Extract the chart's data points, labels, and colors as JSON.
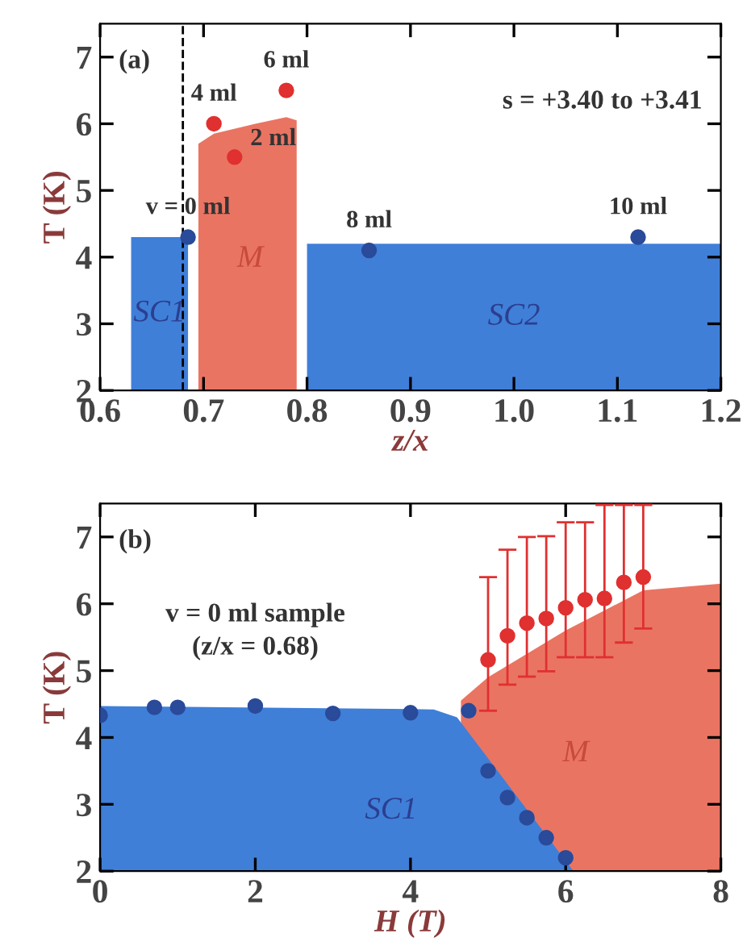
{
  "chart_data": [
    {
      "type": "scatter",
      "xlabel": "z/x",
      "ylabel": "T (K)",
      "xlim": [
        0.6,
        1.2
      ],
      "ylim": [
        2,
        7.5
      ],
      "xticks": [
        0.6,
        0.7,
        0.8,
        0.9,
        {
          "value": 1.0,
          "label": "1.0"
        },
        1.1,
        1.2
      ],
      "yticks": [
        2,
        3,
        4,
        5,
        6,
        7
      ],
      "series": [
        {
          "name": "SC1",
          "type": "area",
          "color": "#3f7fd8",
          "x": [
            0.63,
            0.685
          ],
          "values": [
            4.3,
            4.3
          ]
        },
        {
          "name": "M",
          "type": "area",
          "color": "#ea7462",
          "x": [
            0.695,
            0.71,
            0.75,
            0.78,
            0.79
          ],
          "values": [
            5.7,
            5.85,
            6.0,
            6.1,
            6.05
          ]
        },
        {
          "name": "SC2",
          "type": "area",
          "color": "#3f7fd8",
          "x": [
            0.8,
            1.2
          ],
          "values": [
            4.2,
            4.2
          ]
        },
        {
          "color": "#2a4a9a",
          "marker": "circle",
          "x": [
            0.685,
            0.86,
            1.12
          ],
          "values": [
            4.3,
            4.1,
            4.3
          ]
        },
        {
          "color": "#e03030",
          "marker": "circle",
          "x": [
            0.71,
            0.73,
            0.78
          ],
          "values": [
            6.0,
            5.5,
            6.5
          ]
        }
      ],
      "ref_lines": [
        {
          "axis": "x",
          "value": 0.68,
          "line_style": "dashed",
          "color": "#000000"
        }
      ],
      "annotations": [
        "(a)",
        "s = +3.40 to +3.41",
        {
          "text": "v = 0 ml",
          "x": 0.685,
          "y": 4.3
        },
        {
          "text": "2 ml",
          "x": 0.73,
          "y": 5.5
        },
        {
          "text": "4 ml",
          "x": 0.71,
          "y": 6.0
        },
        {
          "text": "6 ml",
          "x": 0.78,
          "y": 6.5
        },
        {
          "text": "8 ml",
          "x": 0.86,
          "y": 4.1
        },
        {
          "text": "10 ml",
          "x": 1.12,
          "y": 4.3
        }
      ]
    },
    {
      "type": "scatter",
      "xlabel": "H (T)",
      "ylabel": "T (K)",
      "xlim": [
        0,
        8
      ],
      "ylim": [
        2,
        7.5
      ],
      "xticks": [
        0,
        2,
        4,
        6,
        8
      ],
      "yticks": [
        2,
        3,
        4,
        5,
        6,
        7
      ],
      "series": [
        {
          "name": "M",
          "type": "area",
          "color": "#ea7462",
          "x": [
            4.65,
            5,
            6,
            7,
            8
          ],
          "values": [
            4.55,
            4.9,
            5.6,
            6.2,
            6.3
          ]
        },
        {
          "name": "SC1",
          "type": "area",
          "color": "#3f7fd8",
          "x": [
            0,
            4.3,
            4.6,
            6.1
          ],
          "values": [
            4.47,
            4.42,
            4.3,
            2
          ]
        },
        {
          "color": "#2a4a9a",
          "marker": "circle",
          "x": [
            0,
            0.7,
            1,
            2,
            3,
            4,
            4.75,
            5,
            5.25,
            5.5,
            5.75,
            6
          ],
          "values": [
            4.33,
            4.45,
            4.45,
            4.47,
            4.36,
            4.37,
            4.4,
            3.5,
            3.1,
            2.8,
            2.5,
            2.2
          ]
        },
        {
          "color": "#e03030",
          "marker": "circle",
          "x": [
            5,
            5.25,
            5.5,
            5.75,
            6,
            6.25,
            6.5,
            6.75,
            7
          ],
          "values": [
            5.16,
            5.52,
            5.71,
            5.78,
            5.94,
            6.06,
            6.08,
            6.32,
            6.4
          ],
          "errors": [
            [
              4.4,
              6.4
            ],
            [
              4.79,
              6.81
            ],
            [
              4.91,
              7.0
            ],
            [
              4.99,
              7.01
            ],
            [
              5.2,
              7.22
            ],
            [
              5.2,
              7.22
            ],
            [
              5.2,
              7.48
            ],
            [
              5.42,
              7.48
            ],
            [
              5.63,
              7.48
            ]
          ]
        }
      ],
      "annotations": [
        "(b)",
        "v = 0 ml sample",
        "(z/x = 0.68)"
      ]
    }
  ]
}
